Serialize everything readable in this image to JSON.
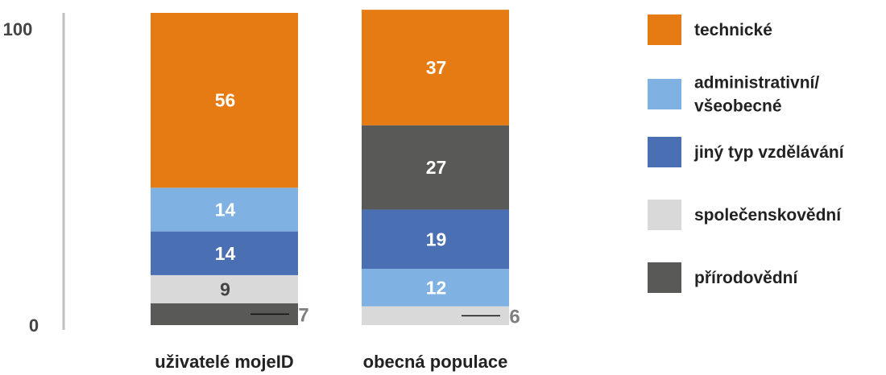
{
  "chart_data": {
    "type": "bar",
    "stacked": true,
    "ylim": [
      0,
      100
    ],
    "yticks": [
      "0",
      "100"
    ],
    "categories": [
      "uživatelé mojeID",
      "obecná populace"
    ],
    "series": [
      {
        "key": "technicke",
        "name": "technické",
        "color": "#e57b12",
        "values": [
          56,
          37
        ]
      },
      {
        "key": "administrativni",
        "name": "administrativní/ všeobecné",
        "color": "#7fb2e3",
        "values": [
          14,
          12
        ]
      },
      {
        "key": "jiny",
        "name": "jiný typ vzdělávání",
        "color": "#4a6fb2",
        "values": [
          14,
          19
        ]
      },
      {
        "key": "spolecenskovedni",
        "name": "společenskovědní",
        "color": "#d9d9d9",
        "values": [
          9,
          6
        ]
      },
      {
        "key": "prirodovedni",
        "name": "přírodovědní",
        "color": "#595957",
        "values": [
          7,
          27
        ]
      }
    ],
    "stack_order": [
      [
        "prirodovedni",
        "spolecenskovedni",
        "jiny",
        "administrativni",
        "technicke"
      ],
      [
        "spolecenskovedni",
        "administrativni",
        "jiny",
        "prirodovedni",
        "technicke"
      ]
    ],
    "segment_labels": [
      {
        "prirodovedni": "7",
        "spolecenskovedni": "9",
        "jiny": "14",
        "administrativni": "14",
        "technicke": "56"
      },
      {
        "spolecenskovedni": "6",
        "administrativni": "12",
        "jiny": "19",
        "prirodovedni": "27",
        "technicke": "37"
      }
    ],
    "external_labels": [
      {
        "series": "prirodovedni",
        "text": "7"
      },
      {
        "series": "spolecenskovedni",
        "text": "6"
      }
    ],
    "legend": [
      {
        "name": "technické",
        "color": "#e57b12",
        "lines": [
          "technické"
        ]
      },
      {
        "name": "administrativní/ všeobecné",
        "color": "#7fb2e3",
        "lines": [
          "administrativní/",
          "všeobecné"
        ]
      },
      {
        "name": "jiný typ vzdělávání",
        "color": "#4a6fb2",
        "lines": [
          "jiný typ vzdělávání"
        ]
      },
      {
        "name": "společenskovědní",
        "color": "#d9d9d9",
        "lines": [
          "společenskovědní"
        ]
      },
      {
        "name": "přírodovědní",
        "color": "#595957",
        "lines": [
          "přírodovědní"
        ]
      }
    ],
    "legend_position": "right",
    "grid": false,
    "label_colors": {
      "dark": "#ffffff",
      "light": "#444444"
    }
  }
}
